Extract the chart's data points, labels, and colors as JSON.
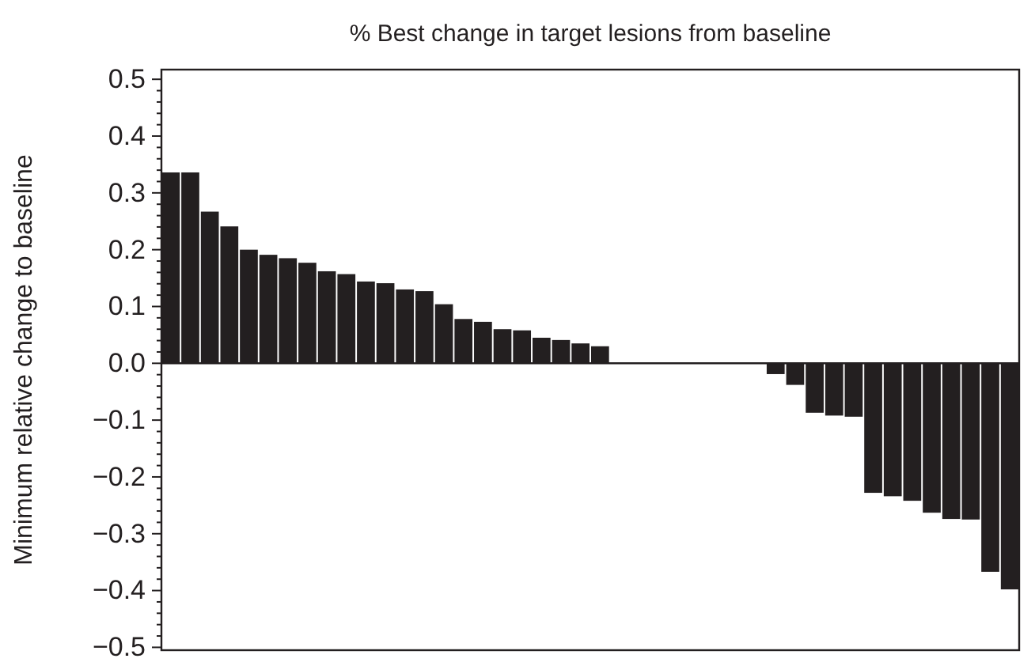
{
  "chart_data": {
    "type": "bar",
    "title": "% Best change in target lesions from baseline",
    "ylabel": "Minimum relative change to baseline",
    "categories": [
      null,
      null,
      null,
      null,
      null,
      null,
      null,
      null,
      null,
      null,
      null,
      null,
      null,
      null,
      null,
      null,
      null,
      null,
      null,
      null,
      null,
      null,
      null,
      null,
      null,
      null,
      null,
      null,
      null,
      null,
      null,
      null,
      null,
      null,
      null,
      null,
      null,
      null,
      null,
      null,
      null,
      null,
      null,
      null
    ],
    "values": [
      0.336,
      0.336,
      0.267,
      0.241,
      0.2,
      0.191,
      0.185,
      0.177,
      0.162,
      0.157,
      0.144,
      0.141,
      0.13,
      0.127,
      0.104,
      0.078,
      0.073,
      0.06,
      0.058,
      0.045,
      0.041,
      0.035,
      0.03,
      0,
      0,
      0,
      0,
      0,
      0,
      0,
      0,
      -0.019,
      -0.038,
      -0.087,
      -0.092,
      -0.094,
      -0.228,
      -0.234,
      -0.242,
      -0.263,
      -0.274,
      -0.275,
      -0.367,
      -0.398
    ],
    "color": "#231f20",
    "ylim": [
      -0.505,
      0.517
    ],
    "yticks": [
      {
        "value": -0.5,
        "label": "−0.5"
      },
      {
        "value": -0.4,
        "label": "−0.4"
      },
      {
        "value": -0.3,
        "label": "−0.3"
      },
      {
        "value": -0.2,
        "label": "−0.2"
      },
      {
        "value": -0.1,
        "label": "−0.1"
      },
      {
        "value": 0,
        "label": "0.0"
      },
      {
        "value": 0.1,
        "label": "0.1"
      },
      {
        "value": 0.2,
        "label": "0.2"
      },
      {
        "value": 0.3,
        "label": "0.3"
      },
      {
        "value": 0.4,
        "label": "0.4"
      },
      {
        "value": 0.5,
        "label": "0.5"
      },
      {
        "value": -0.48,
        "label": null
      },
      {
        "value": -0.46,
        "label": null
      },
      {
        "value": -0.44,
        "label": null
      },
      {
        "value": -0.42,
        "label": null
      },
      {
        "value": -0.38,
        "label": null
      },
      {
        "value": -0.36,
        "label": null
      },
      {
        "value": -0.34,
        "label": null
      },
      {
        "value": -0.32,
        "label": null
      },
      {
        "value": -0.28,
        "label": null
      },
      {
        "value": -0.26,
        "label": null
      },
      {
        "value": -0.24,
        "label": null
      },
      {
        "value": -0.22,
        "label": null
      },
      {
        "value": -0.18,
        "label": null
      },
      {
        "value": -0.16,
        "label": null
      },
      {
        "value": -0.14,
        "label": null
      },
      {
        "value": -0.12,
        "label": null
      },
      {
        "value": -0.08,
        "label": null
      },
      {
        "value": -0.06,
        "label": null
      },
      {
        "value": -0.04,
        "label": null
      },
      {
        "value": -0.02,
        "label": null
      },
      {
        "value": 0.02,
        "label": null
      },
      {
        "value": 0.04,
        "label": null
      },
      {
        "value": 0.06,
        "label": null
      },
      {
        "value": 0.08,
        "label": null
      },
      {
        "value": 0.12,
        "label": null
      },
      {
        "value": 0.14,
        "label": null
      },
      {
        "value": 0.16,
        "label": null
      },
      {
        "value": 0.18,
        "label": null
      },
      {
        "value": 0.22,
        "label": null
      },
      {
        "value": 0.24,
        "label": null
      },
      {
        "value": 0.26,
        "label": null
      },
      {
        "value": 0.28,
        "label": null
      },
      {
        "value": 0.32,
        "label": null
      },
      {
        "value": 0.34,
        "label": null
      },
      {
        "value": 0.36,
        "label": null
      },
      {
        "value": 0.38,
        "label": null
      },
      {
        "value": 0.42,
        "label": null
      },
      {
        "value": 0.44,
        "label": null
      },
      {
        "value": 0.46,
        "label": null
      },
      {
        "value": 0.48,
        "label": null
      }
    ],
    "stacked": false
  }
}
